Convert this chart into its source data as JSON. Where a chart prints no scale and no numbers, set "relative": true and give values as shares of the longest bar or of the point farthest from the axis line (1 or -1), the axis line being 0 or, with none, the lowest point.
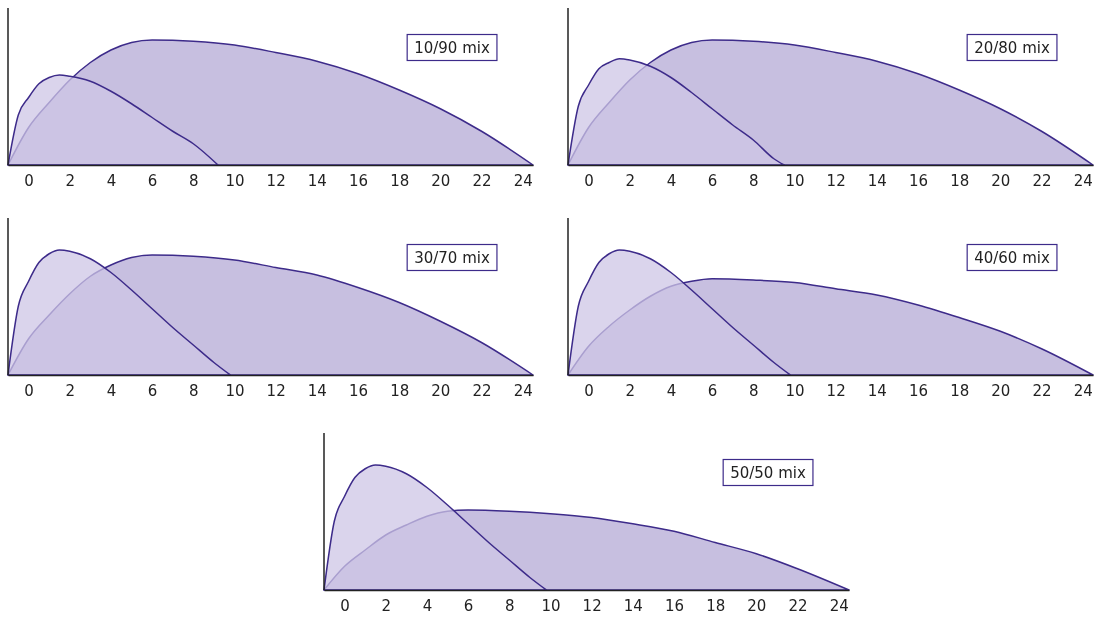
{
  "chart_data": [
    {
      "type": "area",
      "relative": true,
      "xlim": [
        -1,
        24.5
      ],
      "xticks": [
        0,
        2,
        4,
        6,
        8,
        10,
        12,
        14,
        16,
        18,
        20,
        22,
        24
      ],
      "annotations": [
        "10/90 mix"
      ],
      "series": [
        {
          "color": "#b4aad6",
          "x": [
            -1,
            0,
            1,
            2,
            3,
            4,
            5,
            6,
            8,
            10,
            12,
            14,
            16,
            18,
            20,
            22,
            24.5
          ],
          "values": [
            0,
            0.3,
            0.5,
            0.68,
            0.82,
            0.92,
            0.98,
            1,
            0.99,
            0.96,
            0.9,
            0.83,
            0.73,
            0.6,
            0.45,
            0.27,
            0
          ]
        },
        {
          "color": "#cdc6e6",
          "x": [
            -1,
            -0.5,
            0,
            0.5,
            1,
            1.5,
            2,
            3,
            4,
            5,
            6,
            7,
            8,
            9.2
          ],
          "values": [
            0,
            0.4,
            0.54,
            0.65,
            0.7,
            0.72,
            0.71,
            0.67,
            0.59,
            0.49,
            0.38,
            0.27,
            0.17,
            0
          ]
        }
      ]
    },
    {
      "type": "area",
      "relative": true,
      "xlim": [
        -1,
        24.5
      ],
      "xticks": [
        0,
        2,
        4,
        6,
        8,
        10,
        12,
        14,
        16,
        18,
        20,
        22,
        24
      ],
      "annotations": [
        "20/80 mix"
      ],
      "series": [
        {
          "color": "#b4aad6",
          "x": [
            -1,
            0,
            1,
            2,
            3,
            4,
            5,
            6,
            8,
            10,
            12,
            14,
            16,
            18,
            20,
            22,
            24.5
          ],
          "values": [
            0,
            0.3,
            0.5,
            0.68,
            0.82,
            0.92,
            0.98,
            1,
            0.99,
            0.96,
            0.9,
            0.83,
            0.73,
            0.6,
            0.45,
            0.27,
            0
          ]
        },
        {
          "color": "#cdc6e6",
          "x": [
            -1,
            -0.5,
            0,
            0.5,
            1,
            1.5,
            2,
            3,
            4,
            5,
            6,
            7,
            8,
            9,
            9.5
          ],
          "values": [
            0,
            0.47,
            0.64,
            0.77,
            0.82,
            0.85,
            0.84,
            0.79,
            0.7,
            0.58,
            0.45,
            0.32,
            0.2,
            0.05,
            0
          ]
        }
      ]
    },
    {
      "type": "area",
      "relative": true,
      "xlim": [
        -1,
        24.5
      ],
      "xticks": [
        0,
        2,
        4,
        6,
        8,
        10,
        12,
        14,
        16,
        18,
        20,
        22,
        24
      ],
      "annotations": [
        "30/70 mix"
      ],
      "series": [
        {
          "color": "#b4aad6",
          "x": [
            -1,
            0,
            1,
            2,
            3,
            4,
            5,
            6,
            8,
            10,
            12,
            14,
            16,
            18,
            20,
            22,
            24.5
          ],
          "values": [
            0,
            0.29,
            0.48,
            0.65,
            0.79,
            0.88,
            0.94,
            0.96,
            0.95,
            0.92,
            0.86,
            0.8,
            0.7,
            0.58,
            0.43,
            0.26,
            0
          ]
        },
        {
          "color": "#cdc6e6",
          "x": [
            -1,
            -0.5,
            0,
            0.5,
            1,
            1.5,
            2,
            3,
            4,
            5,
            6,
            7,
            8,
            9,
            9.8
          ],
          "values": [
            0,
            0.55,
            0.75,
            0.9,
            0.97,
            1,
            0.99,
            0.93,
            0.82,
            0.68,
            0.53,
            0.38,
            0.24,
            0.1,
            0
          ]
        }
      ]
    },
    {
      "type": "area",
      "relative": true,
      "xlim": [
        -1,
        24.5
      ],
      "xticks": [
        0,
        2,
        4,
        6,
        8,
        10,
        12,
        14,
        16,
        18,
        20,
        22,
        24
      ],
      "annotations": [
        "40/60 mix"
      ],
      "series": [
        {
          "color": "#b4aad6",
          "x": [
            -1,
            0,
            1,
            2,
            3,
            4,
            5,
            6,
            8,
            10,
            12,
            14,
            16,
            18,
            20,
            22,
            24.5
          ],
          "values": [
            0,
            0.23,
            0.39,
            0.52,
            0.63,
            0.71,
            0.75,
            0.77,
            0.76,
            0.74,
            0.69,
            0.64,
            0.56,
            0.46,
            0.35,
            0.21,
            0
          ]
        },
        {
          "color": "#cdc6e6",
          "x": [
            -1,
            -0.5,
            0,
            0.5,
            1,
            1.5,
            2,
            3,
            4,
            5,
            6,
            7,
            8,
            9,
            9.8
          ],
          "values": [
            0,
            0.55,
            0.75,
            0.9,
            0.97,
            1,
            0.99,
            0.93,
            0.82,
            0.68,
            0.53,
            0.38,
            0.24,
            0.1,
            0
          ]
        }
      ]
    },
    {
      "type": "area",
      "relative": true,
      "xlim": [
        -1,
        24.5
      ],
      "xticks": [
        0,
        2,
        4,
        6,
        8,
        10,
        12,
        14,
        16,
        18,
        20,
        22,
        24
      ],
      "annotations": [
        "50/50 mix"
      ],
      "series": [
        {
          "color": "#b4aad6",
          "x": [
            -1,
            0,
            1,
            2,
            3,
            4,
            5,
            6,
            8,
            10,
            12,
            14,
            16,
            18,
            20,
            22,
            24.5
          ],
          "values": [
            0,
            0.19,
            0.32,
            0.44,
            0.52,
            0.59,
            0.63,
            0.64,
            0.63,
            0.61,
            0.58,
            0.53,
            0.47,
            0.38,
            0.29,
            0.17,
            0
          ]
        },
        {
          "color": "#cdc6e6",
          "x": [
            -1,
            -0.5,
            0,
            0.5,
            1,
            1.5,
            2,
            3,
            4,
            5,
            6,
            7,
            8,
            9,
            9.8
          ],
          "values": [
            0,
            0.55,
            0.75,
            0.9,
            0.97,
            1,
            0.99,
            0.93,
            0.82,
            0.68,
            0.53,
            0.38,
            0.24,
            0.1,
            0
          ]
        }
      ]
    }
  ]
}
